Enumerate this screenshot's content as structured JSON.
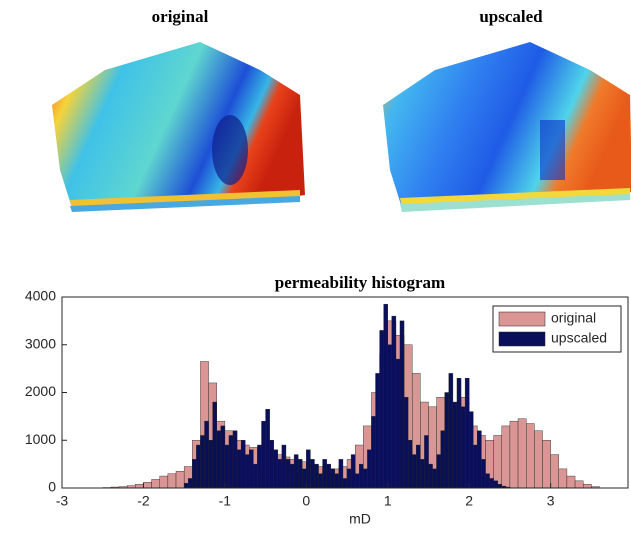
{
  "panels": [
    {
      "title": "original"
    },
    {
      "title": "upscaled"
    }
  ],
  "chart_data": {
    "type": "histogram",
    "title": "permeability histogram",
    "xlabel": "mD",
    "xlim": [
      -3,
      3.95
    ],
    "xticks": [
      -3,
      -2,
      -1,
      0,
      1,
      2,
      3
    ],
    "ylim": [
      0,
      4000
    ],
    "yticks": [
      0,
      1000,
      2000,
      3000,
      4000
    ],
    "legend": "top-right",
    "series": [
      {
        "name": "original",
        "color": "#d99694",
        "bins": [
          -2.5,
          -2.4,
          -2.3,
          -2.2,
          -2.1,
          -2.0,
          -1.9,
          -1.8,
          -1.7,
          -1.6,
          -1.5,
          -1.4,
          -1.3,
          -1.2,
          -1.1,
          -1.0,
          -0.9,
          -0.8,
          -0.7,
          -0.6,
          -0.5,
          -0.4,
          -0.3,
          -0.2,
          -0.1,
          0.0,
          0.1,
          0.2,
          0.3,
          0.4,
          0.5,
          0.6,
          0.7,
          0.8,
          0.9,
          1.0,
          1.1,
          1.2,
          1.3,
          1.4,
          1.5,
          1.6,
          1.7,
          1.8,
          1.9,
          2.0,
          2.1,
          2.2,
          2.3,
          2.4,
          2.5,
          2.6,
          2.7,
          2.8,
          2.9,
          3.0,
          3.1,
          3.2,
          3.3,
          3.4,
          3.5,
          3.6
        ],
        "values": [
          10,
          20,
          30,
          50,
          80,
          120,
          180,
          250,
          300,
          350,
          450,
          1000,
          2650,
          2200,
          1400,
          1200,
          1000,
          900,
          850,
          800,
          750,
          700,
          650,
          600,
          550,
          500,
          450,
          400,
          400,
          450,
          600,
          900,
          1300,
          2000,
          2800,
          3500,
          3200,
          3000,
          2400,
          1800,
          1700,
          1900,
          1800,
          1750,
          1900,
          1300,
          1100,
          1000,
          1100,
          1300,
          1400,
          1450,
          1350,
          1200,
          1000,
          700,
          400,
          250,
          150,
          80,
          30
        ]
      },
      {
        "name": "upscaled",
        "color": "#0a0f5c",
        "bins": [
          -1.5,
          -1.45,
          -1.4,
          -1.35,
          -1.3,
          -1.25,
          -1.2,
          -1.15,
          -1.1,
          -1.05,
          -1.0,
          -0.95,
          -0.9,
          -0.85,
          -0.8,
          -0.75,
          -0.7,
          -0.65,
          -0.6,
          -0.55,
          -0.5,
          -0.45,
          -0.4,
          -0.35,
          -0.3,
          -0.25,
          -0.2,
          -0.15,
          -0.1,
          -0.05,
          0.0,
          0.05,
          0.1,
          0.15,
          0.2,
          0.25,
          0.3,
          0.35,
          0.4,
          0.45,
          0.5,
          0.55,
          0.6,
          0.65,
          0.7,
          0.75,
          0.8,
          0.85,
          0.9,
          0.95,
          1.0,
          1.05,
          1.1,
          1.15,
          1.2,
          1.25,
          1.3,
          1.35,
          1.4,
          1.45,
          1.5,
          1.55,
          1.6,
          1.65,
          1.7,
          1.75,
          1.8,
          1.85,
          1.9,
          1.95,
          2.0,
          2.05,
          2.1,
          2.15,
          2.2,
          2.25,
          2.3,
          2.35,
          2.4,
          2.45,
          2.5
        ],
        "values": [
          100,
          200,
          600,
          900,
          1100,
          1400,
          1000,
          1800,
          1200,
          1300,
          900,
          1100,
          1200,
          800,
          1000,
          700,
          800,
          500,
          900,
          1400,
          1650,
          1000,
          800,
          600,
          900,
          600,
          500,
          700,
          600,
          400,
          800,
          600,
          500,
          300,
          600,
          500,
          400,
          300,
          600,
          200,
          400,
          700,
          300,
          500,
          400,
          800,
          1500,
          2400,
          3300,
          3850,
          3000,
          3600,
          2700,
          3500,
          1900,
          1000,
          700,
          900,
          600,
          1100,
          500,
          400,
          700,
          1200,
          2000,
          2400,
          1800,
          2300,
          1700,
          2300,
          1600,
          900,
          1200,
          600,
          300,
          200,
          150,
          80,
          40,
          20
        ]
      }
    ]
  }
}
